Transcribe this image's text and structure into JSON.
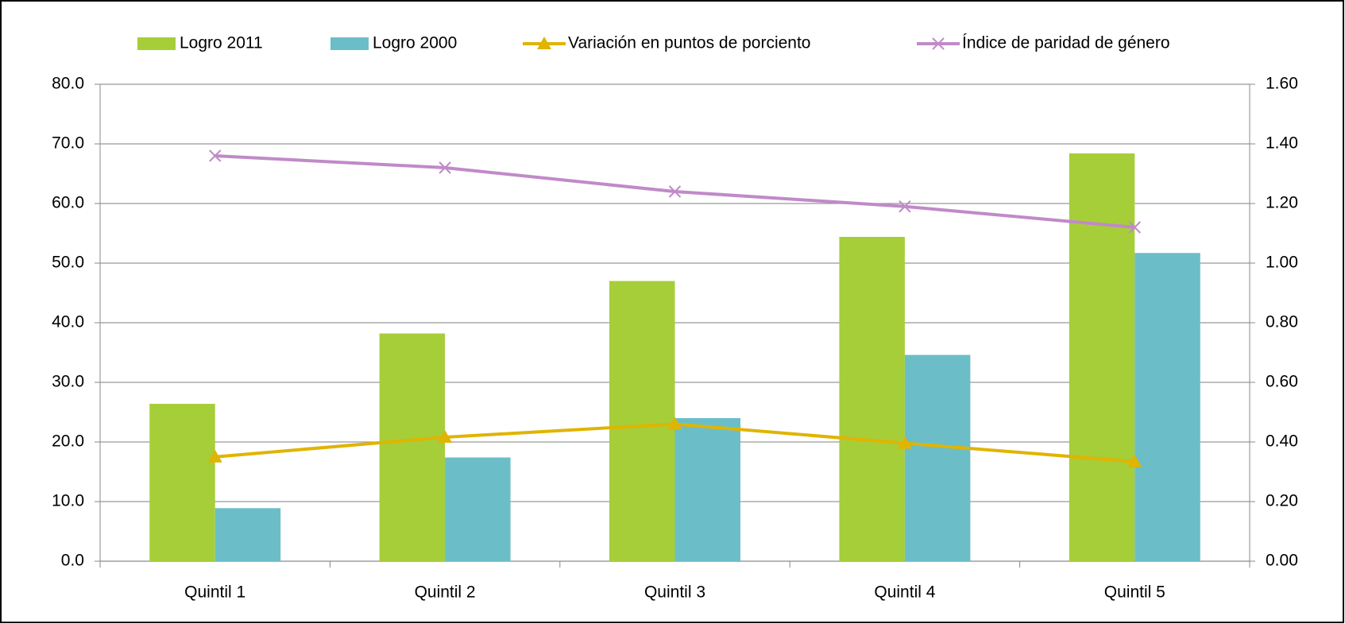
{
  "chart_data": {
    "type": "bar",
    "categories": [
      "Quintil 1",
      "Quintil 2",
      "Quintil 3",
      "Quintil 4",
      "Quintil 5"
    ],
    "series": [
      {
        "name": "Logro 2011",
        "color": "#a6ce39",
        "type": "bar",
        "values": [
          26.4,
          38.2,
          47.0,
          54.4,
          68.4
        ]
      },
      {
        "name": "Logro 2000",
        "color": "#6bbec8",
        "type": "bar",
        "values": [
          8.9,
          17.4,
          24.0,
          34.6,
          51.7
        ]
      },
      {
        "name": "Variación en puntos de porciento",
        "color": "#e0b400",
        "type": "line",
        "marker": "triangle",
        "values": [
          17.5,
          20.8,
          23.0,
          19.8,
          16.7
        ]
      },
      {
        "name": "Índice de paridad de género",
        "color": "#c08ac8",
        "type": "line",
        "marker": "x",
        "axis": "y2",
        "values": [
          1.36,
          1.32,
          1.24,
          1.19,
          1.12
        ]
      }
    ],
    "ylim": [
      0,
      80
    ],
    "yticks": [
      {
        "value": 0,
        "label": "0.0"
      },
      {
        "value": 10,
        "label": "10.0"
      },
      {
        "value": 20,
        "label": "20.0"
      },
      {
        "value": 30,
        "label": "30.0"
      },
      {
        "value": 40,
        "label": "40.0"
      },
      {
        "value": 50,
        "label": "50.0"
      },
      {
        "value": 60,
        "label": "60.0"
      },
      {
        "value": 70,
        "label": "70.0"
      },
      {
        "value": 80,
        "label": "80.0"
      }
    ],
    "y2lim": [
      0,
      1.6
    ],
    "y2ticks": [
      {
        "value": 0,
        "label": "0.00"
      },
      {
        "value": 0.2,
        "label": "0.20"
      },
      {
        "value": 0.4,
        "label": "0.40"
      },
      {
        "value": 0.6,
        "label": "0.60"
      },
      {
        "value": 0.8,
        "label": "0.80"
      },
      {
        "value": 1.0,
        "label": "1.00"
      },
      {
        "value": 1.2,
        "label": "1.20"
      },
      {
        "value": 1.4,
        "label": "1.40"
      },
      {
        "value": 1.6,
        "label": "1.60"
      }
    ],
    "grid": true,
    "legend": "top"
  }
}
